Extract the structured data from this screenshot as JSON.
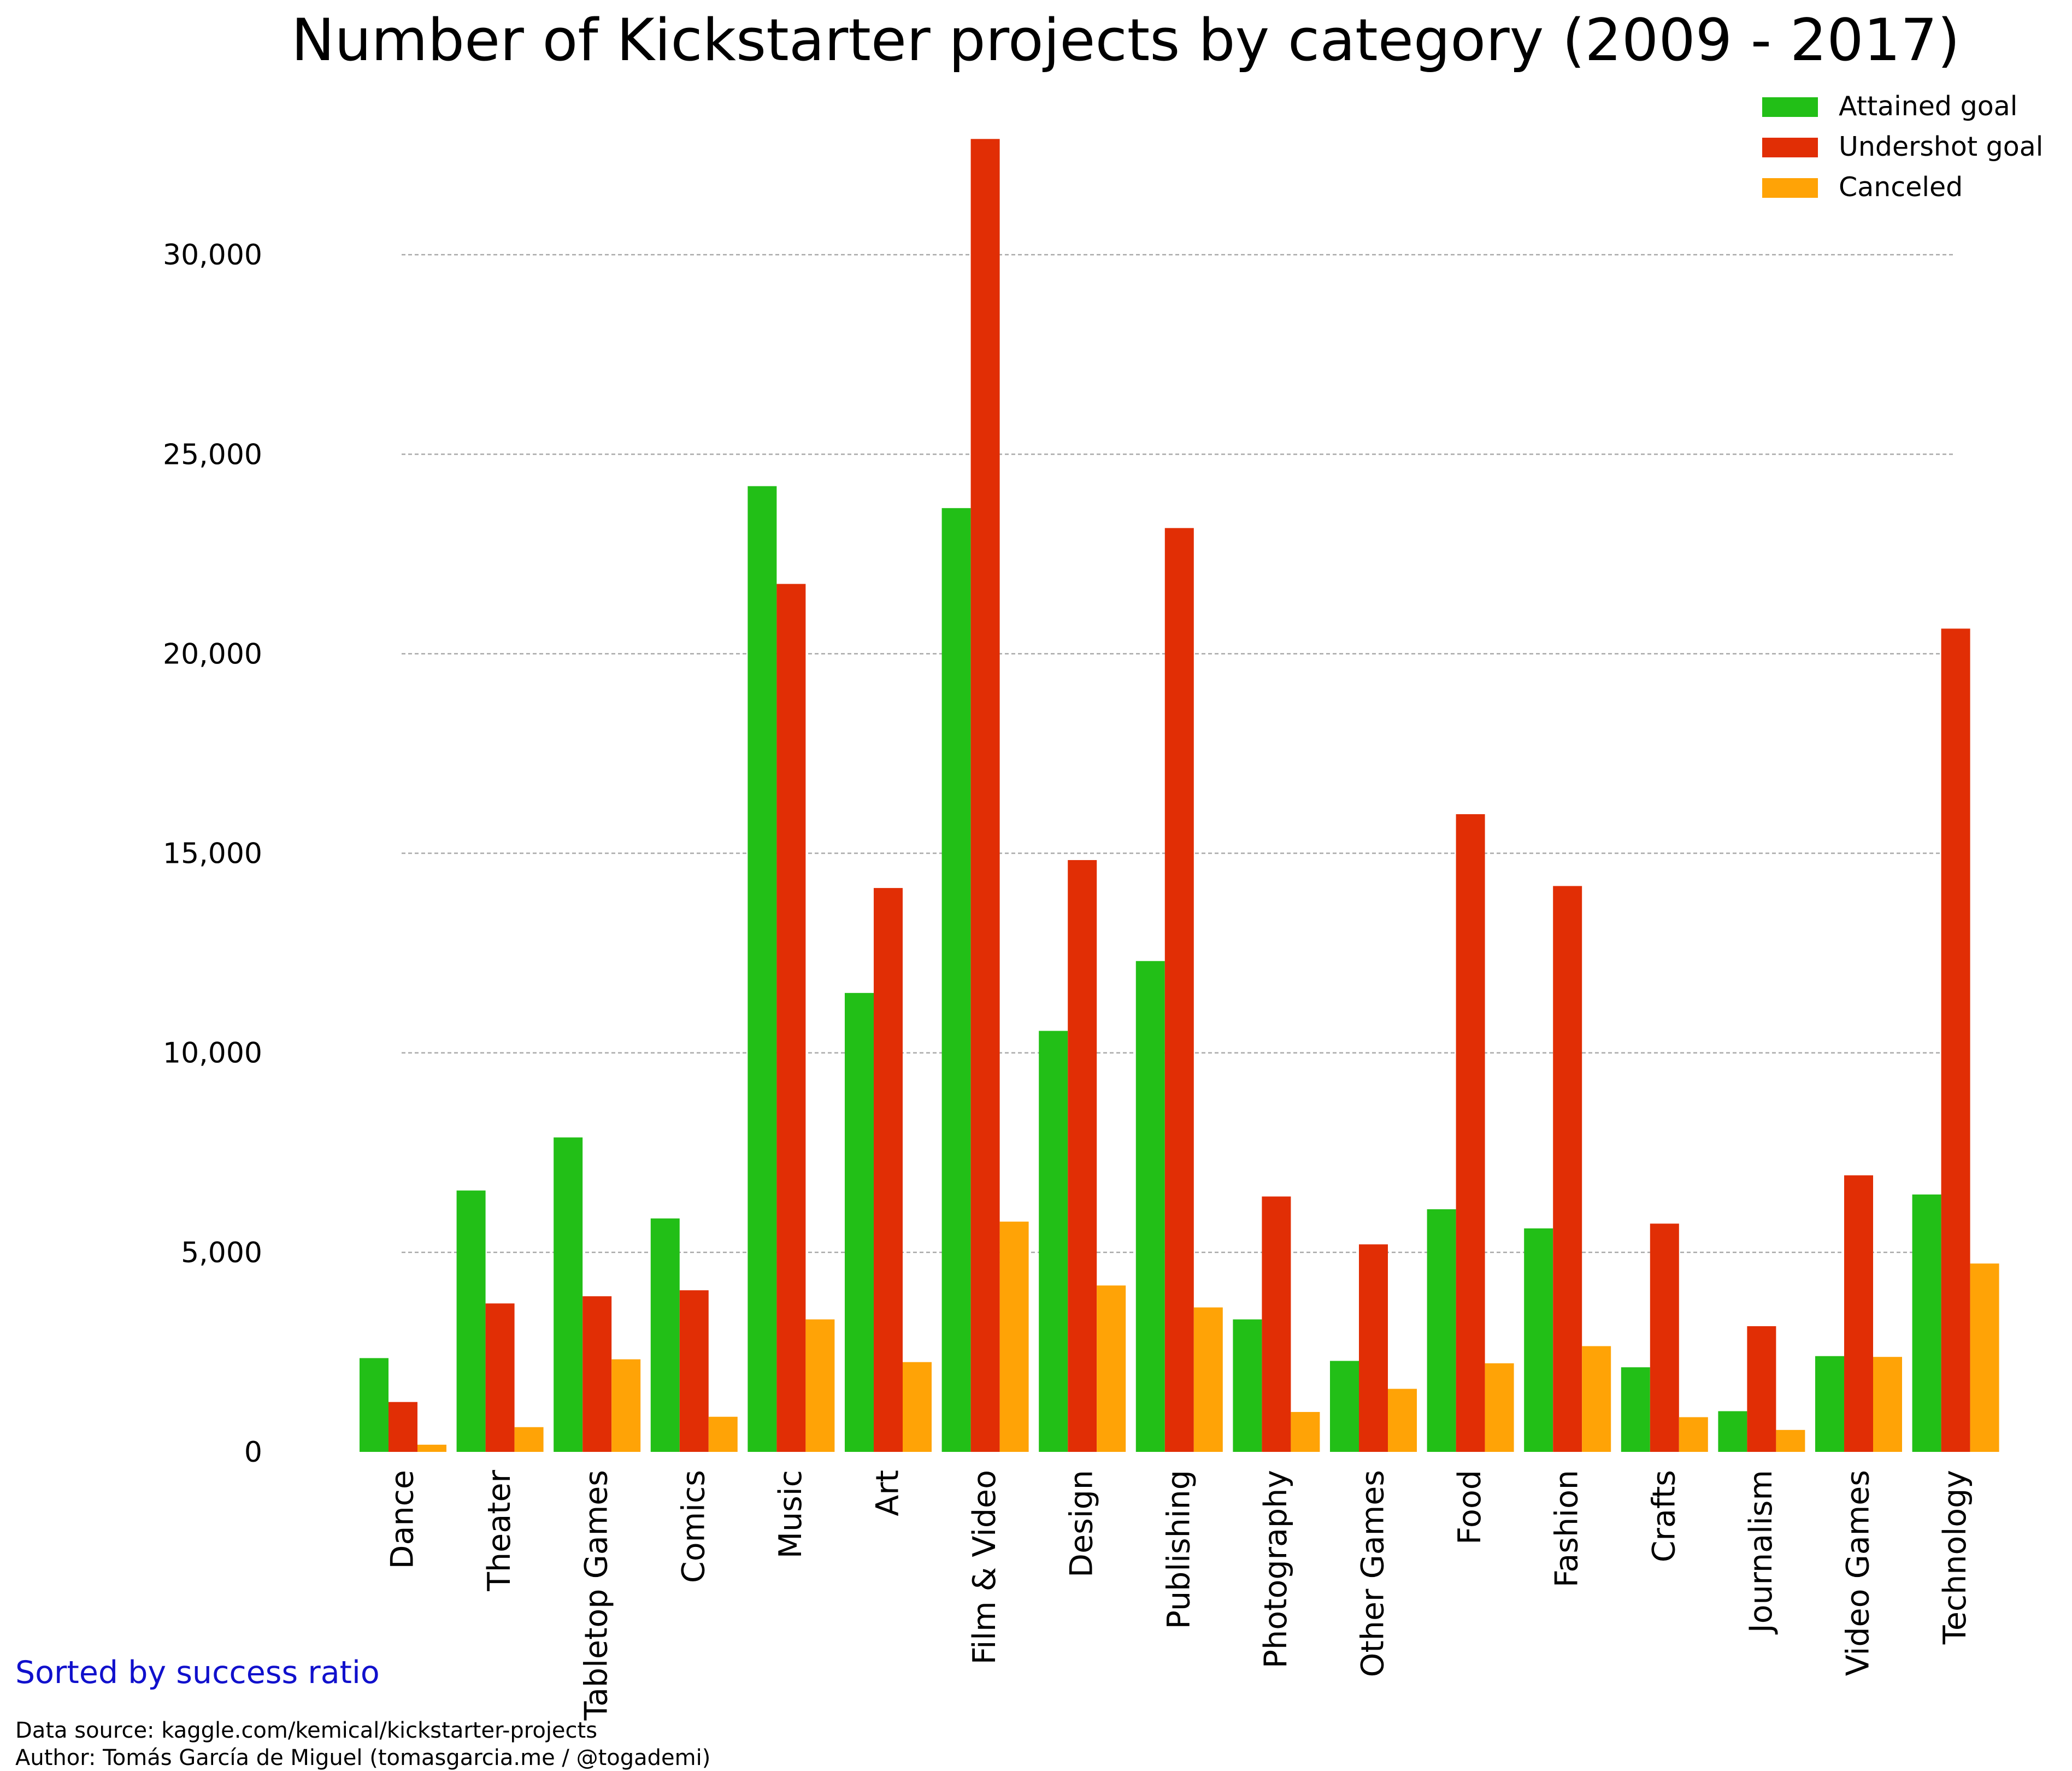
{
  "chart_data": {
    "type": "bar",
    "title": "Number of Kickstarter projects by category (2009 - 2017)",
    "xlabel": "",
    "ylabel": "",
    "ylim": [
      0,
      33000
    ],
    "yticks": [
      0,
      5000,
      10000,
      15000,
      20000,
      25000,
      30000
    ],
    "ytick_labels": [
      "0",
      "5,000",
      "10,000",
      "15,000",
      "20,000",
      "25,000",
      "30,000"
    ],
    "grid": true,
    "legend_position": "top-right",
    "categories": [
      "Dance",
      "Theater",
      "Tabletop Games",
      "Comics",
      "Music",
      "Art",
      "Film & Video",
      "Design",
      "Publishing",
      "Photography",
      "Other Games",
      "Food",
      "Fashion",
      "Crafts",
      "Journalism",
      "Video Games",
      "Technology"
    ],
    "series": [
      {
        "name": "Attained goal",
        "color": "#22bf17",
        "values": [
          2350,
          6550,
          7880,
          5850,
          24200,
          11500,
          23650,
          10550,
          12300,
          3320,
          2280,
          6080,
          5600,
          2120,
          1020,
          2400,
          6450
        ]
      },
      {
        "name": "Undershot goal",
        "color": "#e12e05",
        "values": [
          1250,
          3720,
          3900,
          4050,
          21750,
          14130,
          32900,
          14830,
          23150,
          6400,
          5200,
          15980,
          14180,
          5720,
          3150,
          6930,
          20630
        ]
      },
      {
        "name": "Canceled",
        "color": "#ffa306",
        "values": [
          180,
          620,
          2320,
          880,
          3320,
          2250,
          5770,
          4170,
          3620,
          1000,
          1580,
          2220,
          2650,
          870,
          550,
          2380,
          4720
        ]
      }
    ]
  },
  "annotations": {
    "sort_note": "Sorted by success ratio",
    "sort_note_color": "#1010cc",
    "source": "Data source: kaggle.com/kemical/kickstarter-projects",
    "author": "Author: Tomás García de Miguel (tomasgarcia.me / @togademi)"
  }
}
